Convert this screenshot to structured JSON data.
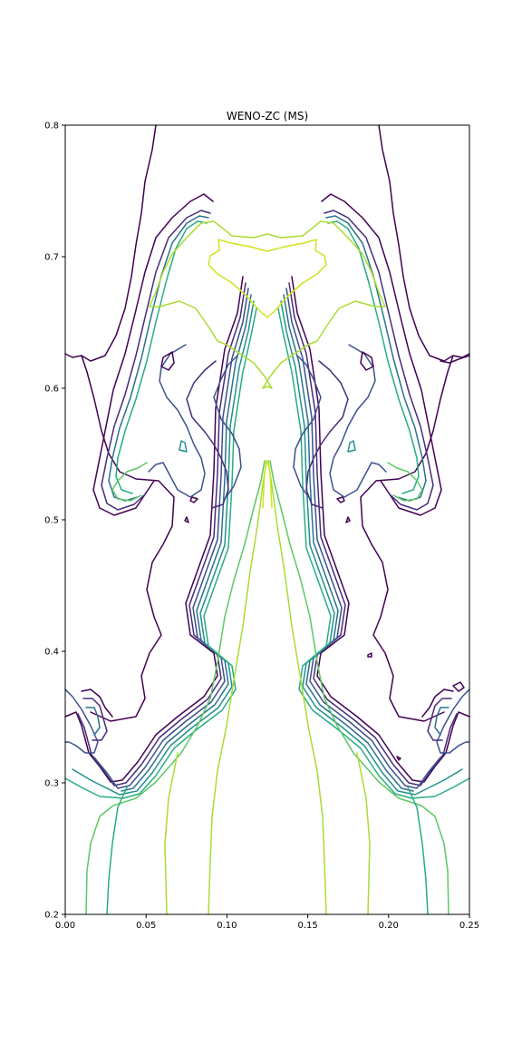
{
  "chart_data": {
    "type": "contour",
    "title": "WENO-ZC (MS)",
    "xlabel": "",
    "ylabel": "",
    "xlim": [
      0.0,
      0.25
    ],
    "ylim": [
      0.2,
      0.8
    ],
    "xticks": [
      "0.00",
      "0.05",
      "0.10",
      "0.15",
      "0.20",
      "0.25"
    ],
    "yticks": [
      "0.2",
      "0.3",
      "0.4",
      "0.5",
      "0.6",
      "0.7",
      "0.8"
    ],
    "grid": false,
    "colormap": "viridis",
    "level_colors": [
      "#440154",
      "#472c7a",
      "#3b518b",
      "#2c718e",
      "#21908d",
      "#27ad81",
      "#5cc863",
      "#aadc32",
      "#d2e21b"
    ],
    "symmetric_about_x": 0.125
  }
}
